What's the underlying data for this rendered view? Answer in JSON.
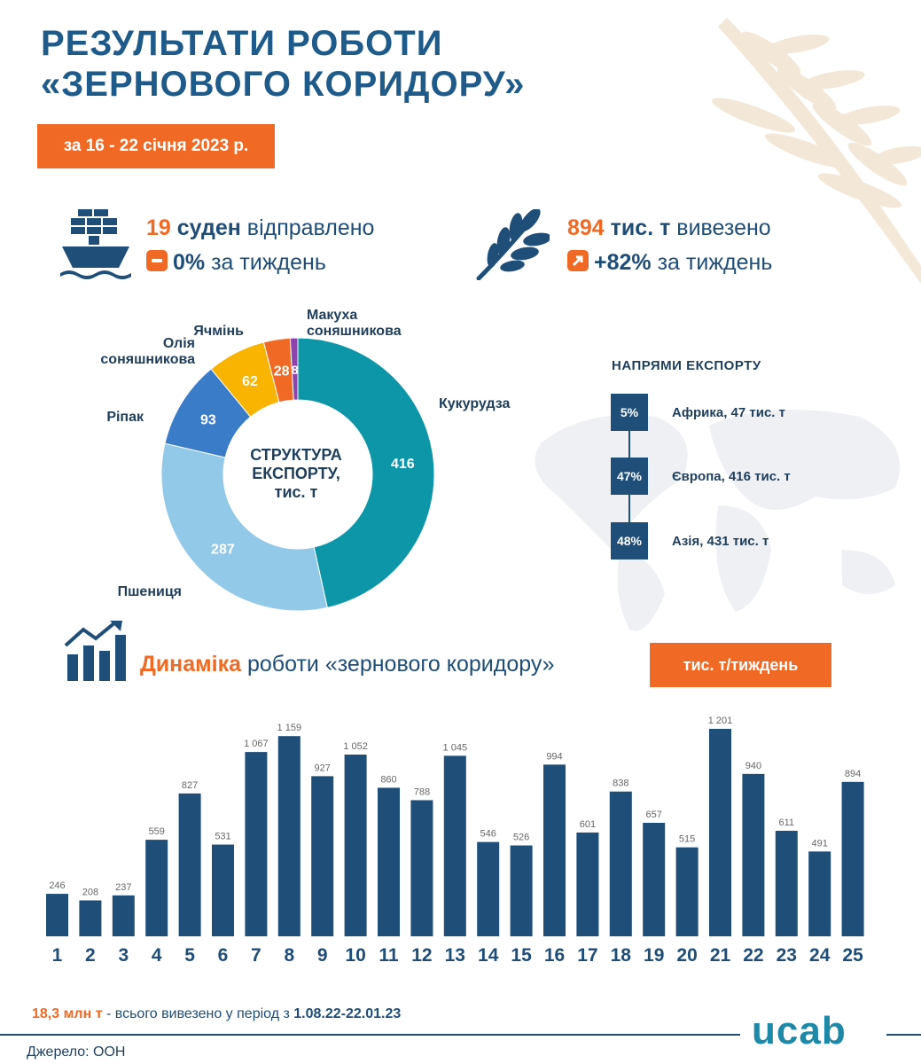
{
  "header": {
    "title_line1": "РЕЗУЛЬТАТИ РОБОТИ",
    "title_line2": "«ЗЕРНОВОГО КОРИДОРУ»",
    "period": "за 16 - 22 січня 2023 р."
  },
  "stats": {
    "ships": {
      "count": "19",
      "unit": "суден",
      "text": "відправлено",
      "change": "0%",
      "change_text": "за тиждень"
    },
    "volume": {
      "count": "894",
      "unit": "тис. т",
      "text": "вивезено",
      "change": "+82%",
      "change_text": "за тиждень"
    }
  },
  "colors": {
    "accent": "#f06a26",
    "navy": "#1f4e79",
    "teal": "#0c96a8",
    "light_blue": "#92c8e8",
    "blue": "#3a7cc8",
    "yellow": "#f8b400",
    "purple": "#8e44ad"
  },
  "export_directions": {
    "title": "НАПРЯМИ ЕКСПОРТУ",
    "items": [
      {
        "pct": "5%",
        "label": "Африка, 47 тис. т"
      },
      {
        "pct": "47%",
        "label": "Європа, 416 тис. т"
      },
      {
        "pct": "48%",
        "label": "Азія, 431 тис. т"
      }
    ]
  },
  "dynamics": {
    "title_accent": "Динаміка",
    "title_rest": "роботи «зернового коридору»",
    "unit": "тис. т/тиждень"
  },
  "footer": {
    "total_value": "18,3 млн т",
    "total_text": "- всього вивезено у період з",
    "total_period": "1.08.22-22.01.23",
    "source": "Джерело: ООН",
    "logo": "ucab"
  },
  "chart_data": [
    {
      "type": "pie",
      "title": "СТРУКТУРА ЕКСПОРТУ, тис. т",
      "slices": [
        {
          "name": "Кукурудза",
          "value": 416,
          "color": "#0c96a8"
        },
        {
          "name": "Пшениця",
          "value": 287,
          "color": "#92c8e8"
        },
        {
          "name": "Ріпак",
          "value": 93,
          "color": "#3a7cc8"
        },
        {
          "name": "Олія соняшникова",
          "value": 62,
          "color": "#f8b400"
        },
        {
          "name": "Ячмінь",
          "value": 28,
          "color": "#f06a26"
        },
        {
          "name": "Макуха соняшникова",
          "value": 8,
          "color": "#8e44ad"
        }
      ]
    },
    {
      "type": "bar",
      "categories": [
        "1",
        "2",
        "3",
        "4",
        "5",
        "6",
        "7",
        "8",
        "9",
        "10",
        "11",
        "12",
        "13",
        "14",
        "15",
        "16",
        "17",
        "18",
        "19",
        "20",
        "21",
        "22",
        "23",
        "24",
        "25"
      ],
      "values": [
        246,
        208,
        237,
        559,
        827,
        531,
        1067,
        1159,
        927,
        1052,
        860,
        788,
        1045,
        546,
        526,
        994,
        601,
        838,
        657,
        515,
        1201,
        940,
        611,
        491,
        894
      ],
      "value_labels": [
        "246",
        "208",
        "237",
        "559",
        "827",
        "531",
        "1 067",
        "1 159",
        "927",
        "1 052",
        "860",
        "788",
        "1 045",
        "546",
        "526",
        "994",
        "601",
        "838",
        "657",
        "515",
        "1 201",
        "940",
        "611",
        "491",
        "894"
      ],
      "ylim": [
        0,
        1201
      ],
      "color": "#1f4e79"
    }
  ]
}
